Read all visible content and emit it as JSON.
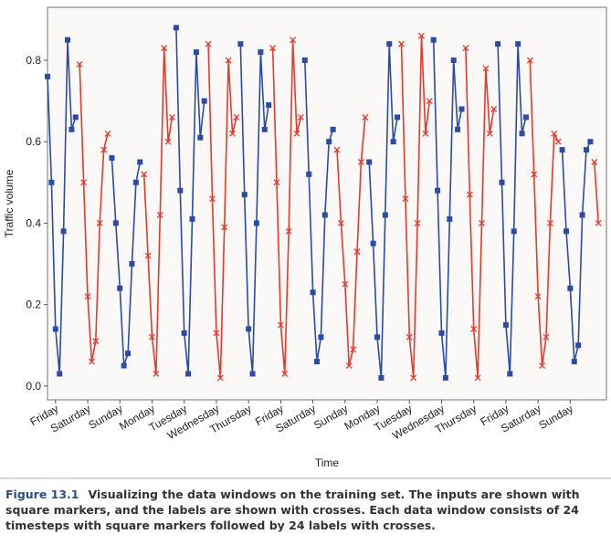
{
  "chart_data": {
    "type": "line",
    "xlabel": "Time",
    "ylabel": "Traffic volume",
    "x": [
      -6,
      -3,
      0,
      3,
      6,
      9,
      12,
      15,
      18,
      21,
      24,
      27,
      30,
      33,
      36,
      39,
      42,
      45,
      48,
      51,
      54,
      57,
      60,
      63,
      66,
      69,
      72,
      75,
      78,
      81,
      84,
      87,
      90,
      93,
      96,
      99,
      102,
      105,
      108,
      111,
      114,
      117,
      120,
      123,
      126,
      129,
      132,
      135,
      138,
      141,
      144,
      147,
      150,
      153,
      156,
      159,
      162,
      165,
      168,
      171,
      174,
      177,
      180,
      183,
      186,
      189,
      192,
      195,
      198,
      201,
      204,
      207,
      210,
      213,
      216,
      219,
      222,
      225,
      228,
      231,
      234,
      237,
      240,
      243,
      246,
      249,
      252,
      255,
      258,
      261,
      264,
      267,
      270,
      273,
      276,
      279,
      282,
      285,
      288,
      291,
      294,
      297,
      300,
      303,
      306,
      309,
      312,
      315,
      318,
      321,
      324,
      327,
      330,
      333,
      336,
      339,
      342,
      345,
      348,
      351,
      354,
      357,
      360,
      363,
      366,
      369,
      372,
      375,
      378,
      381,
      384,
      387,
      390,
      393,
      396,
      399,
      402,
      405
    ],
    "series": [
      {
        "color": "#2b4ba6",
        "marker": "square",
        "values": [
          0.76,
          0.5,
          0.14,
          0.03,
          0.38,
          0.85,
          0.63,
          0.66,
          null,
          null,
          null,
          null,
          null,
          null,
          null,
          null,
          0.56,
          0.4,
          0.24,
          0.05,
          0.08,
          0.3,
          0.5,
          0.55,
          null,
          null,
          null,
          null,
          null,
          null,
          null,
          null,
          0.88,
          0.48,
          0.13,
          0.03,
          0.41,
          0.82,
          0.61,
          0.7,
          null,
          null,
          null,
          null,
          null,
          null,
          null,
          null,
          0.84,
          0.47,
          0.14,
          0.03,
          0.4,
          0.82,
          0.63,
          0.69,
          null,
          null,
          null,
          null,
          null,
          null,
          null,
          null,
          0.8,
          0.52,
          0.23,
          0.06,
          0.12,
          0.42,
          0.6,
          0.63,
          null,
          null,
          null,
          null,
          null,
          null,
          null,
          null,
          0.55,
          0.35,
          0.12,
          0.02,
          0.42,
          0.84,
          0.6,
          0.66,
          null,
          null,
          null,
          null,
          null,
          null,
          null,
          null,
          0.85,
          0.48,
          0.13,
          0.02,
          0.41,
          0.8,
          0.63,
          0.68,
          null,
          null,
          null,
          null,
          null,
          null,
          null,
          null,
          0.84,
          0.5,
          0.15,
          0.03,
          0.38,
          0.84,
          0.62,
          0.66,
          null,
          null,
          null,
          null,
          null,
          null,
          null,
          null,
          0.58,
          0.38,
          0.24,
          0.06,
          0.1,
          0.42,
          0.58,
          0.6,
          null,
          null
        ]
      },
      {
        "color": "#e8392b",
        "marker": "cross",
        "values": [
          null,
          null,
          null,
          null,
          null,
          null,
          null,
          null,
          0.79,
          0.5,
          0.22,
          0.06,
          0.11,
          0.4,
          0.58,
          0.62,
          null,
          null,
          null,
          null,
          null,
          null,
          null,
          null,
          0.52,
          0.32,
          0.12,
          0.03,
          0.42,
          0.83,
          0.6,
          0.66,
          null,
          null,
          null,
          null,
          null,
          null,
          null,
          null,
          0.84,
          0.46,
          0.13,
          0.02,
          0.39,
          0.8,
          0.62,
          0.66,
          null,
          null,
          null,
          null,
          null,
          null,
          null,
          null,
          0.83,
          0.5,
          0.15,
          0.03,
          0.38,
          0.85,
          0.62,
          0.66,
          null,
          null,
          null,
          null,
          null,
          null,
          null,
          null,
          0.58,
          0.4,
          0.25,
          0.05,
          0.09,
          0.33,
          0.55,
          0.66,
          null,
          null,
          null,
          null,
          null,
          null,
          null,
          null,
          0.84,
          0.46,
          0.12,
          0.02,
          0.4,
          0.86,
          0.62,
          0.7,
          null,
          null,
          null,
          null,
          null,
          null,
          null,
          null,
          0.83,
          0.47,
          0.14,
          0.02,
          0.4,
          0.78,
          0.62,
          0.68,
          null,
          null,
          null,
          null,
          null,
          null,
          null,
          null,
          0.8,
          0.52,
          0.22,
          0.05,
          0.12,
          0.4,
          0.62,
          0.6,
          null,
          null,
          null,
          null,
          null,
          null,
          null,
          null,
          0.55,
          0.4
        ]
      }
    ],
    "xlim": [
      -6,
      411
    ],
    "xticks": [
      {
        "value": 0,
        "label": "Friday"
      },
      {
        "value": 24,
        "label": "Saturday"
      },
      {
        "value": 48,
        "label": "Sunday"
      },
      {
        "value": 72,
        "label": "Monday"
      },
      {
        "value": 96,
        "label": "Tuesday"
      },
      {
        "value": 120,
        "label": "Wednesday"
      },
      {
        "value": 144,
        "label": "Thursday"
      },
      {
        "value": 168,
        "label": "Friday"
      },
      {
        "value": 192,
        "label": "Saturday"
      },
      {
        "value": 216,
        "label": "Sunday"
      },
      {
        "value": 240,
        "label": "Monday"
      },
      {
        "value": 264,
        "label": "Tuesday"
      },
      {
        "value": 288,
        "label": "Wednesday"
      },
      {
        "value": 312,
        "label": "Thursday"
      },
      {
        "value": 336,
        "label": "Friday"
      },
      {
        "value": 360,
        "label": "Saturday"
      },
      {
        "value": 384,
        "label": "Sunday"
      }
    ],
    "ylim": [
      -0.034,
      0.93
    ],
    "yticks": [
      {
        "value": 0,
        "label": "0.0"
      },
      0.2,
      0.4,
      0.6,
      0.8
    ],
    "grid": false
  },
  "caption": {
    "label": "Figure 13.1",
    "text": "Visualizing the data windows on the training set. The inputs are shown with square markers, and the labels are shown with crosses. Each data window consists of 24 timesteps with square markers followed by 24 labels with crosses."
  }
}
